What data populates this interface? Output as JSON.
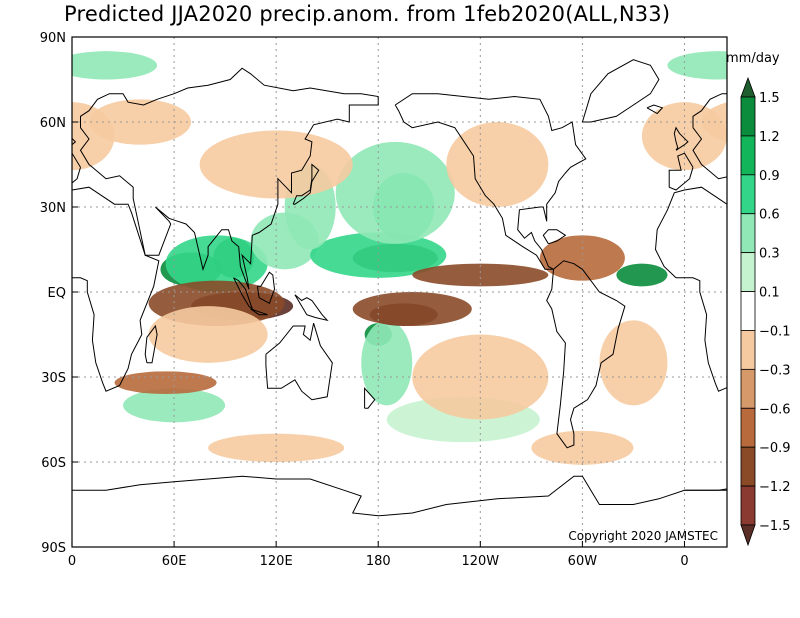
{
  "title": "Predicted JJA2020 precip.anom. from 1feb2020(ALL,N33)",
  "units": "mm/day",
  "copyright": "Copyright 2020 JAMSTEC",
  "lat_ticks": [
    {
      "label": "90N",
      "value": 90
    },
    {
      "label": "60N",
      "value": 60
    },
    {
      "label": "30N",
      "value": 30
    },
    {
      "label": "EQ",
      "value": 0
    },
    {
      "label": "30S",
      "value": -30
    },
    {
      "label": "60S",
      "value": -60
    },
    {
      "label": "90S",
      "value": -90
    }
  ],
  "lon_ticks": [
    {
      "label": "0",
      "value": 0
    },
    {
      "label": "60E",
      "value": 60
    },
    {
      "label": "120E",
      "value": 120
    },
    {
      "label": "180",
      "value": 180
    },
    {
      "label": "120W",
      "value": 240
    },
    {
      "label": "60W",
      "value": 300
    },
    {
      "label": "0",
      "value": 360
    }
  ],
  "lon_range": [
    0,
    385
  ],
  "lat_range": [
    -90,
    90
  ],
  "colorbar": {
    "labels": [
      "1.5",
      "1.2",
      "0.9",
      "0.6",
      "0.3",
      "0.1",
      "−0.1",
      "−0.3",
      "−0.6",
      "−0.9",
      "−1.2",
      "−1.5"
    ],
    "colors": [
      "#1f5f2f",
      "#0a8c3c",
      "#13b55a",
      "#33d688",
      "#8fe8b6",
      "#c6f3cf",
      "#ffffff",
      "#f6caa0",
      "#d69a6a",
      "#b86a3c",
      "#8a4a28",
      "#8b3a32",
      "#5a2e26"
    ]
  },
  "anomaly_blobs": [
    {
      "lon": 70,
      "lat": 8,
      "rx": 18,
      "ry": 6,
      "color": "#0a8c3c"
    },
    {
      "lon": 95,
      "lat": 12,
      "rx": 12,
      "ry": 7,
      "color": "#0a8c3c"
    },
    {
      "lon": 85,
      "lat": 10,
      "rx": 30,
      "ry": 10,
      "color": "#33d688"
    },
    {
      "lon": 125,
      "lat": 18,
      "rx": 20,
      "ry": 10,
      "color": "#8fe8b6"
    },
    {
      "lon": 190,
      "lat": 12,
      "rx": 25,
      "ry": 5,
      "color": "#1f5f2f"
    },
    {
      "lon": 180,
      "lat": 13,
      "rx": 40,
      "ry": 8,
      "color": "#33d688"
    },
    {
      "lon": 195,
      "lat": 30,
      "rx": 18,
      "ry": 12,
      "color": "#33d688"
    },
    {
      "lon": 190,
      "lat": 35,
      "rx": 35,
      "ry": 18,
      "color": "#8fe8b6"
    },
    {
      "lon": 335,
      "lat": 6,
      "rx": 15,
      "ry": 4,
      "color": "#0a8c3c"
    },
    {
      "lon": 180,
      "lat": -15,
      "rx": 8,
      "ry": 4,
      "color": "#0a8c3c"
    },
    {
      "lon": 185,
      "lat": -25,
      "rx": 15,
      "ry": 15,
      "color": "#8fe8b6"
    },
    {
      "lon": 140,
      "lat": 30,
      "rx": 15,
      "ry": 15,
      "color": "#8fe8b6"
    },
    {
      "lon": 60,
      "lat": -40,
      "rx": 30,
      "ry": 6,
      "color": "#8fe8b6"
    },
    {
      "lon": 230,
      "lat": -45,
      "rx": 45,
      "ry": 8,
      "color": "#c6f3cf"
    },
    {
      "lon": 20,
      "lat": 80,
      "rx": 30,
      "ry": 5,
      "color": "#8fe8b6"
    },
    {
      "lon": 100,
      "lat": -5,
      "rx": 30,
      "ry": 5,
      "color": "#5a2e26"
    },
    {
      "lon": 85,
      "lat": -4,
      "rx": 40,
      "ry": 8,
      "color": "#8a4a28"
    },
    {
      "lon": 195,
      "lat": -8,
      "rx": 20,
      "ry": 4,
      "color": "#5a2e26"
    },
    {
      "lon": 200,
      "lat": -6,
      "rx": 35,
      "ry": 6,
      "color": "#8a4a28"
    },
    {
      "lon": 240,
      "lat": 6,
      "rx": 40,
      "ry": 4,
      "color": "#8a4a28"
    },
    {
      "lon": 300,
      "lat": 12,
      "rx": 25,
      "ry": 8,
      "color": "#b86a3c"
    },
    {
      "lon": 55,
      "lat": -32,
      "rx": 30,
      "ry": 4,
      "color": "#b86a3c"
    },
    {
      "lon": 80,
      "lat": -15,
      "rx": 35,
      "ry": 10,
      "color": "#f6caa0"
    },
    {
      "lon": 240,
      "lat": -30,
      "rx": 40,
      "ry": 15,
      "color": "#f6caa0"
    },
    {
      "lon": 330,
      "lat": -25,
      "rx": 20,
      "ry": 15,
      "color": "#f6caa0"
    },
    {
      "lon": 120,
      "lat": 45,
      "rx": 45,
      "ry": 12,
      "color": "#f6caa0"
    },
    {
      "lon": 250,
      "lat": 45,
      "rx": 30,
      "ry": 15,
      "color": "#f6caa0"
    },
    {
      "lon": 360,
      "lat": 55,
      "rx": 25,
      "ry": 12,
      "color": "#f6caa0"
    },
    {
      "lon": 40,
      "lat": 60,
      "rx": 30,
      "ry": 8,
      "color": "#f6caa0"
    },
    {
      "lon": 300,
      "lat": -55,
      "rx": 30,
      "ry": 6,
      "color": "#f6caa0"
    },
    {
      "lon": 120,
      "lat": -55,
      "rx": 40,
      "ry": 5,
      "color": "#f6caa0"
    }
  ],
  "coastlines": [
    [
      [
        0,
        36
      ],
      [
        10,
        37
      ],
      [
        25,
        31
      ],
      [
        33,
        31
      ],
      [
        35,
        28
      ],
      [
        43,
        13
      ],
      [
        51,
        11
      ],
      [
        48,
        2
      ],
      [
        40,
        -10
      ],
      [
        41,
        -15
      ],
      [
        35,
        -22
      ],
      [
        33,
        -27
      ],
      [
        28,
        -33
      ],
      [
        20,
        -35
      ],
      [
        18,
        -32
      ],
      [
        14,
        -25
      ],
      [
        12,
        -17
      ],
      [
        13,
        -8
      ],
      [
        9,
        0
      ],
      [
        9,
        4
      ],
      [
        5,
        5
      ],
      [
        -5,
        5
      ],
      [
        -12,
        9
      ],
      [
        -17,
        15
      ],
      [
        -16,
        22
      ],
      [
        -10,
        29
      ],
      [
        -6,
        35
      ],
      [
        0,
        36
      ]
    ],
    [
      [
        5,
        44
      ],
      [
        0,
        49
      ],
      [
        -4,
        48
      ],
      [
        -2,
        43
      ],
      [
        -9,
        43
      ],
      [
        -9,
        37
      ],
      [
        -5,
        36
      ],
      [
        3,
        40
      ],
      [
        5,
        44
      ]
    ],
    [
      [
        5,
        58
      ],
      [
        10,
        54
      ],
      [
        5,
        50
      ],
      [
        10,
        45
      ],
      [
        12,
        44
      ],
      [
        20,
        40
      ],
      [
        28,
        41
      ],
      [
        36,
        37
      ],
      [
        36,
        33
      ],
      [
        43,
        13
      ],
      [
        51,
        13
      ],
      [
        58,
        24
      ],
      [
        57,
        25
      ],
      [
        49,
        30
      ],
      [
        57,
        26
      ],
      [
        62,
        25
      ],
      [
        67,
        24
      ],
      [
        72,
        21
      ],
      [
        77,
        8
      ],
      [
        80,
        13
      ],
      [
        80,
        16
      ],
      [
        88,
        22
      ],
      [
        92,
        22
      ],
      [
        94,
        18
      ],
      [
        98,
        16
      ],
      [
        99,
        9
      ],
      [
        104,
        1
      ],
      [
        103,
        5
      ],
      [
        100,
        13
      ],
      [
        105,
        10
      ],
      [
        106,
        20
      ],
      [
        110,
        21
      ],
      [
        117,
        24
      ],
      [
        121,
        31
      ],
      [
        121,
        37
      ],
      [
        121,
        40
      ],
      [
        129,
        35
      ],
      [
        129,
        42
      ],
      [
        135,
        43
      ],
      [
        140,
        48
      ],
      [
        141,
        53
      ],
      [
        137,
        54
      ],
      [
        142,
        59
      ],
      [
        156,
        61
      ],
      [
        163,
        60
      ],
      [
        163,
        66
      ],
      [
        180,
        66
      ],
      [
        180,
        69
      ],
      [
        170,
        70
      ],
      [
        160,
        70
      ],
      [
        140,
        72
      ],
      [
        130,
        71
      ],
      [
        113,
        73
      ],
      [
        105,
        77
      ],
      [
        100,
        79
      ],
      [
        93,
        75
      ],
      [
        80,
        73
      ],
      [
        68,
        72
      ],
      [
        60,
        70
      ],
      [
        50,
        68
      ],
      [
        42,
        66
      ],
      [
        33,
        67
      ],
      [
        30,
        70
      ],
      [
        22,
        70
      ],
      [
        15,
        68
      ],
      [
        10,
        64
      ],
      [
        5,
        62
      ],
      [
        5,
        58
      ]
    ],
    [
      [
        114,
        -22
      ],
      [
        122,
        -18
      ],
      [
        130,
        -12
      ],
      [
        137,
        -12
      ],
      [
        136,
        -15
      ],
      [
        140,
        -17
      ],
      [
        142,
        -11
      ],
      [
        146,
        -19
      ],
      [
        153,
        -25
      ],
      [
        150,
        -37
      ],
      [
        141,
        -38
      ],
      [
        135,
        -35
      ],
      [
        131,
        -31
      ],
      [
        123,
        -34
      ],
      [
        115,
        -34
      ],
      [
        114,
        -26
      ],
      [
        114,
        -22
      ]
    ],
    [
      [
        190,
        66
      ],
      [
        200,
        70
      ],
      [
        215,
        70
      ],
      [
        230,
        69
      ],
      [
        245,
        68
      ],
      [
        260,
        69
      ],
      [
        275,
        68
      ],
      [
        280,
        62
      ],
      [
        282,
        57
      ],
      [
        288,
        58
      ],
      [
        294,
        60
      ],
      [
        296,
        52
      ],
      [
        302,
        47
      ],
      [
        293,
        44
      ],
      [
        290,
        42
      ],
      [
        286,
        39
      ],
      [
        284,
        35
      ],
      [
        279,
        31
      ],
      [
        279,
        25
      ],
      [
        277,
        30
      ],
      [
        275,
        30
      ],
      [
        263,
        29
      ],
      [
        262,
        22
      ],
      [
        266,
        19
      ],
      [
        270,
        21
      ],
      [
        272,
        18
      ],
      [
        276,
        15
      ],
      [
        280,
        9
      ],
      [
        283,
        8
      ],
      [
        278,
        8
      ],
      [
        273,
        13
      ],
      [
        265,
        16
      ],
      [
        255,
        20
      ],
      [
        253,
        26
      ],
      [
        248,
        31
      ],
      [
        243,
        34
      ],
      [
        237,
        40
      ],
      [
        236,
        48
      ],
      [
        225,
        58
      ],
      [
        215,
        60
      ],
      [
        200,
        58
      ],
      [
        195,
        60
      ],
      [
        192,
        64
      ],
      [
        190,
        66
      ]
    ],
    [
      [
        283,
        8
      ],
      [
        282,
        1
      ],
      [
        279,
        -3
      ],
      [
        282,
        -6
      ],
      [
        285,
        -14
      ],
      [
        290,
        -18
      ],
      [
        289,
        -28
      ],
      [
        287,
        -40
      ],
      [
        285,
        -50
      ],
      [
        291,
        -55
      ],
      [
        295,
        -54
      ],
      [
        295,
        -50
      ],
      [
        293,
        -45
      ],
      [
        295,
        -41
      ],
      [
        303,
        -38
      ],
      [
        308,
        -33
      ],
      [
        311,
        -25
      ],
      [
        318,
        -22
      ],
      [
        321,
        -13
      ],
      [
        325,
        -5
      ],
      [
        320,
        -3
      ],
      [
        310,
        0
      ],
      [
        300,
        8
      ],
      [
        295,
        10
      ],
      [
        289,
        11
      ],
      [
        283,
        8
      ]
    ],
    [
      [
        0,
        -70
      ],
      [
        20,
        -70
      ],
      [
        40,
        -68
      ],
      [
        60,
        -67
      ],
      [
        80,
        -66
      ],
      [
        100,
        -65
      ],
      [
        120,
        -66
      ],
      [
        140,
        -66
      ],
      [
        160,
        -70
      ],
      [
        170,
        -72
      ],
      [
        165,
        -78
      ],
      [
        180,
        -79
      ],
      [
        200,
        -78
      ],
      [
        220,
        -75
      ],
      [
        250,
        -73
      ],
      [
        280,
        -72
      ],
      [
        295,
        -65
      ],
      [
        300,
        -65
      ],
      [
        310,
        -75
      ],
      [
        330,
        -75
      ],
      [
        345,
        -73
      ],
      [
        360,
        -70
      ],
      [
        385,
        -70
      ]
    ],
    [
      [
        -5,
        50
      ],
      [
        0,
        52
      ],
      [
        2,
        53
      ],
      [
        -3,
        56
      ],
      [
        -5,
        58
      ],
      [
        -6,
        56
      ],
      [
        -5,
        53
      ],
      [
        -4,
        51
      ],
      [
        -5,
        50
      ]
    ],
    [
      [
        130,
        31
      ],
      [
        132,
        34
      ],
      [
        135,
        34
      ],
      [
        140,
        36
      ],
      [
        141,
        40
      ],
      [
        141,
        45
      ],
      [
        145,
        43
      ],
      [
        141,
        39
      ],
      [
        140,
        35
      ],
      [
        136,
        33
      ],
      [
        131,
        31
      ],
      [
        130,
        31
      ]
    ],
    [
      [
        95,
        5
      ],
      [
        98,
        4
      ],
      [
        102,
        1
      ],
      [
        106,
        -6
      ],
      [
        104,
        -5
      ],
      [
        100,
        -1
      ],
      [
        95,
        5
      ]
    ],
    [
      [
        105,
        -6
      ],
      [
        110,
        -7
      ],
      [
        115,
        -8
      ],
      [
        110,
        -8
      ],
      [
        105,
        -6
      ]
    ],
    [
      [
        109,
        2
      ],
      [
        110,
        -2
      ],
      [
        116,
        -4
      ],
      [
        119,
        1
      ],
      [
        118,
        6
      ],
      [
        116,
        7
      ],
      [
        111,
        2
      ],
      [
        109,
        2
      ]
    ],
    [
      [
        131,
        -1
      ],
      [
        135,
        -3
      ],
      [
        138,
        -2
      ],
      [
        141,
        -3
      ],
      [
        147,
        -8
      ],
      [
        150,
        -10
      ],
      [
        143,
        -9
      ],
      [
        138,
        -8
      ],
      [
        134,
        -4
      ],
      [
        131,
        -1
      ]
    ],
    [
      [
        44,
        -25
      ],
      [
        47,
        -25
      ],
      [
        50,
        -15
      ],
      [
        49,
        -12
      ],
      [
        44,
        -16
      ],
      [
        43,
        -22
      ],
      [
        44,
        -25
      ]
    ],
    [
      [
        172,
        -41
      ],
      [
        174,
        -41
      ],
      [
        178,
        -38
      ],
      [
        175,
        -36
      ],
      [
        172,
        -34
      ],
      [
        172,
        -41
      ]
    ],
    [
      [
        300,
        60
      ],
      [
        305,
        70
      ],
      [
        315,
        77
      ],
      [
        330,
        82
      ],
      [
        340,
        80
      ],
      [
        345,
        75
      ],
      [
        340,
        70
      ],
      [
        330,
        66
      ],
      [
        320,
        62
      ],
      [
        305,
        60
      ],
      [
        300,
        60
      ]
    ],
    [
      [
        338,
        65
      ],
      [
        342,
        66
      ],
      [
        347,
        65
      ],
      [
        344,
        63
      ],
      [
        338,
        65
      ]
    ],
    [
      [
        280,
        17
      ],
      [
        285,
        18
      ],
      [
        290,
        20
      ],
      [
        285,
        22
      ],
      [
        280,
        22
      ],
      [
        277,
        20
      ],
      [
        280,
        17
      ]
    ]
  ]
}
